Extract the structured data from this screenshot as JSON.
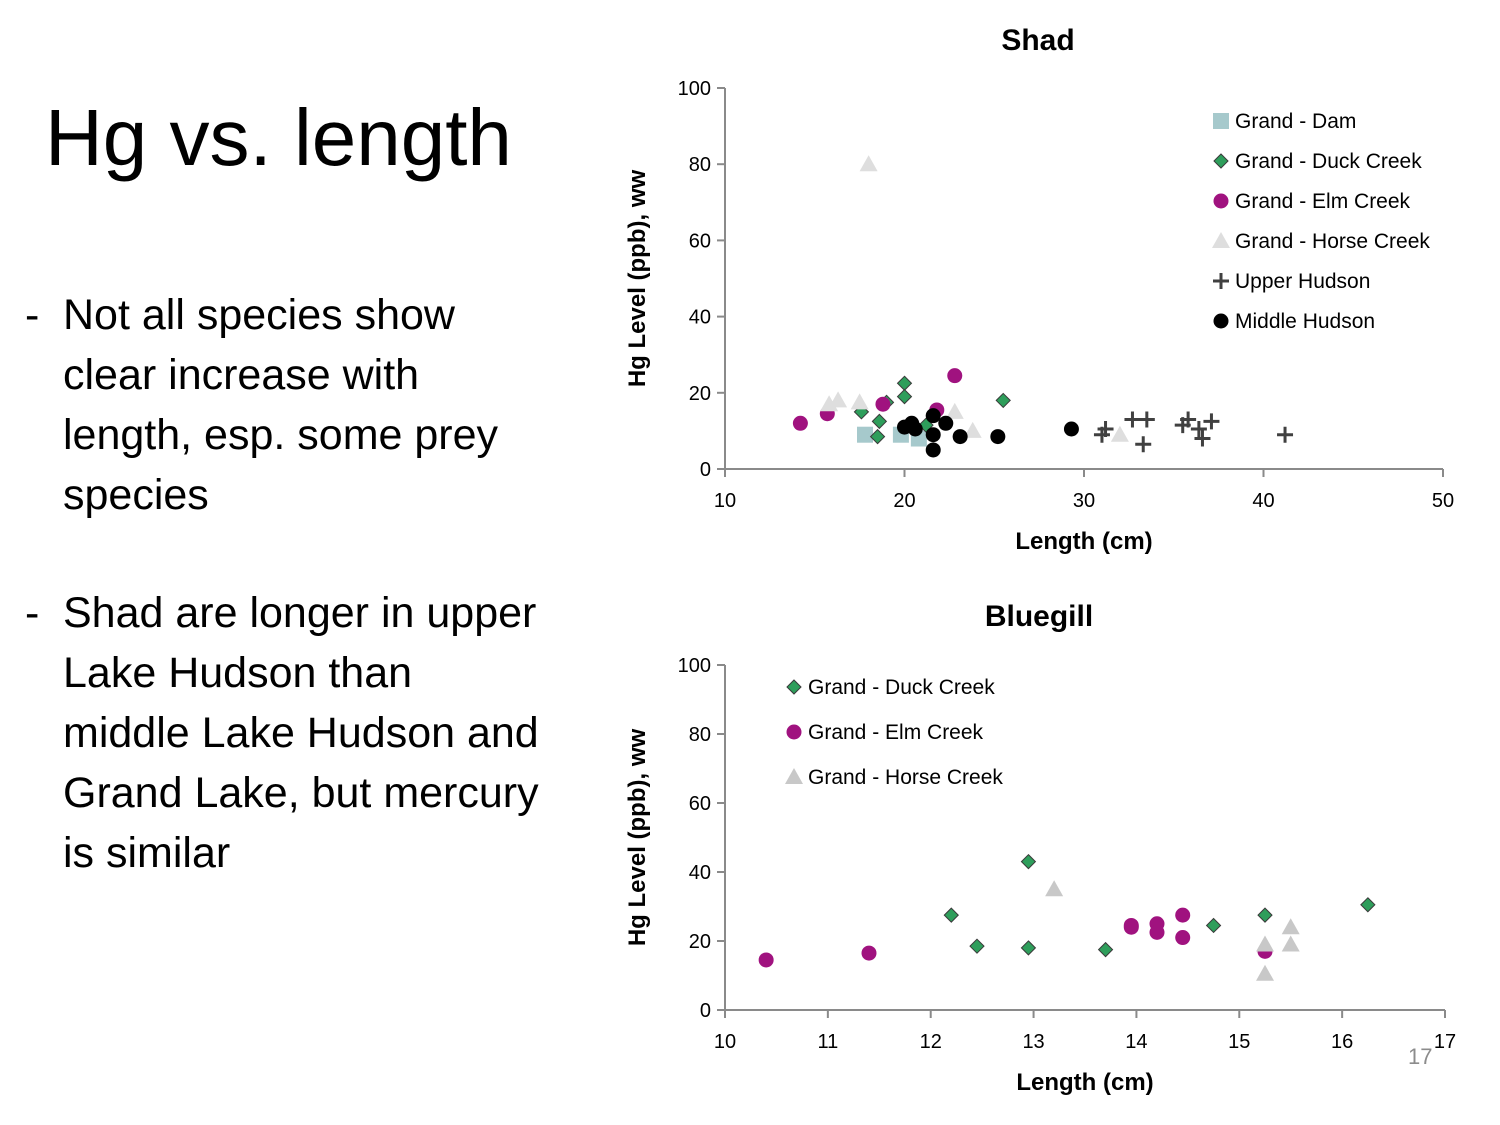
{
  "slide": {
    "title": "Hg vs. length",
    "bullets": [
      {
        "marker": "-",
        "text": "Not all species show clear increase with length, esp. some prey species"
      },
      {
        "marker": "-",
        "text": "Shad are longer in upper Lake Hudson than middle Lake Hudson and Grand Lake, but mercury is similar"
      }
    ],
    "page_number": "17"
  },
  "chart_data": [
    {
      "type": "scatter",
      "title": "Shad",
      "xlabel": "Length (cm)",
      "ylabel": "Hg Level (ppb), ww",
      "xlim": [
        10,
        50
      ],
      "ylim": [
        0,
        100
      ],
      "xticks": [
        10,
        20,
        30,
        40,
        50
      ],
      "yticks": [
        0,
        20,
        40,
        60,
        80,
        100
      ],
      "grid": false,
      "legend_position": "top-right",
      "series": [
        {
          "name": "Grand - Dam",
          "marker": "square",
          "color": "#a6c9cc",
          "points": [
            [
              17.8,
              9
            ],
            [
              19.8,
              9
            ],
            [
              20.8,
              8
            ]
          ]
        },
        {
          "name": "Grand - Duck Creek",
          "marker": "diamond",
          "color": "#2e9e5b",
          "points": [
            [
              17.6,
              15
            ],
            [
              18.6,
              12.5
            ],
            [
              19,
              17.5
            ],
            [
              20,
              22.5
            ],
            [
              20,
              19
            ],
            [
              18.5,
              8.5
            ],
            [
              21.2,
              11.5
            ],
            [
              25.5,
              18
            ]
          ]
        },
        {
          "name": "Grand - Elm Creek",
          "marker": "circle",
          "color": "#a0127f",
          "points": [
            [
              14.2,
              12
            ],
            [
              15.7,
              14.5
            ],
            [
              18.8,
              17
            ],
            [
              21.8,
              15.5
            ],
            [
              22.8,
              24.5
            ]
          ]
        },
        {
          "name": "Grand - Horse Creek",
          "marker": "triangle",
          "color": "#dedede",
          "points": [
            [
              18,
              80
            ],
            [
              15.8,
              17
            ],
            [
              16.3,
              18
            ],
            [
              17.5,
              17.5
            ],
            [
              22.8,
              15
            ],
            [
              23.8,
              10
            ],
            [
              32,
              9
            ]
          ]
        },
        {
          "name": "Upper Hudson",
          "marker": "plus",
          "color": "#404040",
          "points": [
            [
              31,
              9
            ],
            [
              31.2,
              10.5
            ],
            [
              32.7,
              13
            ],
            [
              33.3,
              6.5
            ],
            [
              33.5,
              13
            ],
            [
              35.5,
              11.5
            ],
            [
              35.8,
              13
            ],
            [
              36.4,
              10.5
            ],
            [
              36.6,
              8
            ],
            [
              37.1,
              12.5
            ],
            [
              41.2,
              9
            ]
          ]
        },
        {
          "name": "Middle Hudson",
          "marker": "circle",
          "color": "#000000",
          "points": [
            [
              20,
              11
            ],
            [
              20.4,
              12
            ],
            [
              20.6,
              10.5
            ],
            [
              21.6,
              14
            ],
            [
              21.6,
              9
            ],
            [
              21.6,
              5
            ],
            [
              22.3,
              12
            ],
            [
              23.1,
              8.5
            ],
            [
              25.2,
              8.5
            ],
            [
              29.3,
              10.5
            ]
          ]
        }
      ]
    },
    {
      "type": "scatter",
      "title": "Bluegill",
      "xlabel": "Length (cm)",
      "ylabel": "Hg Level (ppb), ww",
      "xlim": [
        10,
        17
      ],
      "ylim": [
        0,
        100
      ],
      "xticks": [
        10,
        11,
        12,
        13,
        14,
        15,
        16,
        17
      ],
      "yticks": [
        0,
        20,
        40,
        60,
        80,
        100
      ],
      "grid": false,
      "legend_position": "top-left",
      "series": [
        {
          "name": "Grand - Duck Creek",
          "marker": "diamond",
          "color": "#2e9e5b",
          "points": [
            [
              12.2,
              27.5
            ],
            [
              12.45,
              18.5
            ],
            [
              12.95,
              43
            ],
            [
              12.95,
              18
            ],
            [
              13.7,
              17.5
            ],
            [
              14.75,
              24.5
            ],
            [
              15.25,
              27.5
            ],
            [
              16.25,
              30.5
            ]
          ]
        },
        {
          "name": "Grand - Elm Creek",
          "marker": "circle",
          "color": "#a0127f",
          "points": [
            [
              10.4,
              14.5
            ],
            [
              11.4,
              16.5
            ],
            [
              13.95,
              24.5
            ],
            [
              13.95,
              24
            ],
            [
              14.2,
              25
            ],
            [
              14.2,
              22.5
            ],
            [
              14.45,
              27.5
            ],
            [
              14.45,
              21
            ],
            [
              15.25,
              17
            ]
          ]
        },
        {
          "name": "Grand - Horse Creek",
          "marker": "triangle",
          "color": "#c8c8c8",
          "points": [
            [
              13.2,
              35
            ],
            [
              15.25,
              19
            ],
            [
              15.25,
              10.5
            ],
            [
              15.5,
              24
            ],
            [
              15.5,
              19
            ]
          ]
        }
      ]
    }
  ]
}
